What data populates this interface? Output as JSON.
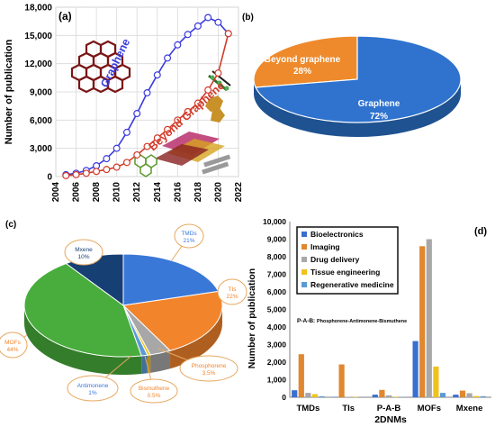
{
  "chart_data": [
    {
      "panel": "(a)",
      "type": "line",
      "ylabel": "Number of publication",
      "xlim": [
        2004,
        2022
      ],
      "ylim": [
        0,
        18000
      ],
      "x_ticks": [
        2004,
        2006,
        2008,
        2010,
        2012,
        2014,
        2016,
        2018,
        2020,
        2022
      ],
      "y_ticks": [
        "0",
        "3,000",
        "6,000",
        "9,000",
        "12,000",
        "15,000",
        "18,000"
      ],
      "y_tick_values": [
        0,
        3000,
        6000,
        9000,
        12000,
        15000,
        18000
      ],
      "x": [
        2005,
        2006,
        2007,
        2008,
        2009,
        2010,
        2011,
        2012,
        2013,
        2014,
        2015,
        2016,
        2017,
        2018,
        2019,
        2020,
        2021
      ],
      "series": [
        {
          "name": "Graphene",
          "color": "#3a3adf",
          "values": [
            200,
            350,
            650,
            1150,
            1900,
            3000,
            4700,
            6700,
            8900,
            10800,
            12600,
            14000,
            15100,
            16000,
            16900,
            16400,
            15200
          ]
        },
        {
          "name": "Beyond Graphene",
          "color": "#d23b2a",
          "values": [
            100,
            200,
            350,
            550,
            750,
            1000,
            1500,
            2300,
            3200,
            4100,
            5000,
            6000,
            6900,
            7800,
            9200,
            11000,
            15200
          ]
        }
      ]
    },
    {
      "panel": "(b)",
      "type": "pie",
      "slices": [
        {
          "label": "Graphene",
          "value": 72,
          "pct": "72%",
          "color": "#2f73cf"
        },
        {
          "label": "Beyond graphene",
          "value": 28,
          "pct": "28%",
          "color": "#ee8a2b"
        }
      ]
    },
    {
      "panel": "(c)",
      "type": "pie",
      "slices": [
        {
          "label": "TMDs",
          "value": 21,
          "pct": "21%",
          "color": "#3a78d8"
        },
        {
          "label": "TIs",
          "value": 22,
          "pct": "22%",
          "color": "#f2842c"
        },
        {
          "label": "Phosphorene",
          "value": 3.5,
          "pct": "3.5%",
          "color": "#a7a7a7"
        },
        {
          "label": "Bismuthene",
          "value": 0.5,
          "pct": "0.5%",
          "color": "#f2c21c"
        },
        {
          "label": "Antimonene",
          "value": 1,
          "pct": "1%",
          "color": "#5b9bd5"
        },
        {
          "label": "MOFs",
          "value": 44,
          "pct": "44%",
          "color": "#48ad3c"
        },
        {
          "label": "Mxene",
          "value": 10,
          "pct": "10%",
          "color": "#163f74"
        }
      ]
    },
    {
      "panel": "(d)",
      "type": "bar",
      "xlabel": "2DNMs",
      "ylabel": "Number of publication",
      "ylim": [
        0,
        10000
      ],
      "y_ticks": [
        "0",
        "1,000",
        "2,000",
        "3,000",
        "4,000",
        "5,000",
        "6,000",
        "7,000",
        "8,000",
        "9,000",
        "10,000"
      ],
      "y_tick_values": [
        0,
        1000,
        2000,
        3000,
        4000,
        5000,
        6000,
        7000,
        8000,
        9000,
        10000
      ],
      "categories": [
        "TMDs",
        "TIs",
        "P-A-B",
        "MOFs",
        "Mxene"
      ],
      "series": [
        {
          "name": "Bioelectronics",
          "color": "#3a6fd0",
          "values": [
            400,
            20,
            150,
            3200,
            150
          ]
        },
        {
          "name": "Imaging",
          "color": "#e0872f",
          "values": [
            2450,
            1870,
            420,
            8600,
            380
          ]
        },
        {
          "name": "Drug delivery",
          "color": "#a8a8a8",
          "values": [
            250,
            20,
            110,
            9000,
            230
          ]
        },
        {
          "name": "Tissue engineering",
          "color": "#f2c21c",
          "values": [
            180,
            30,
            30,
            1750,
            70
          ]
        },
        {
          "name": "Regenerative medicine",
          "color": "#5b9bd5",
          "values": [
            60,
            10,
            20,
            250,
            60
          ]
        }
      ],
      "annotation": "P-A-B: Phosphorene-Antimonene-Bismuthene"
    }
  ],
  "labels": {
    "a": {
      "panel": "(a)",
      "graphene": "Graphene",
      "beyond": "Beyond Graphene"
    },
    "b": {
      "panel": "(b)",
      "beyond_name": "Beyond graphene",
      "beyond_pct": "28%",
      "graphene_name": "Graphene",
      "graphene_pct": "72%"
    },
    "c": {
      "panel": "(c)"
    },
    "d": {
      "panel": "(d)",
      "prefix": "P-A-B: ",
      "expansion": "Phosphorene-Antimonene-Bismuthene"
    }
  }
}
